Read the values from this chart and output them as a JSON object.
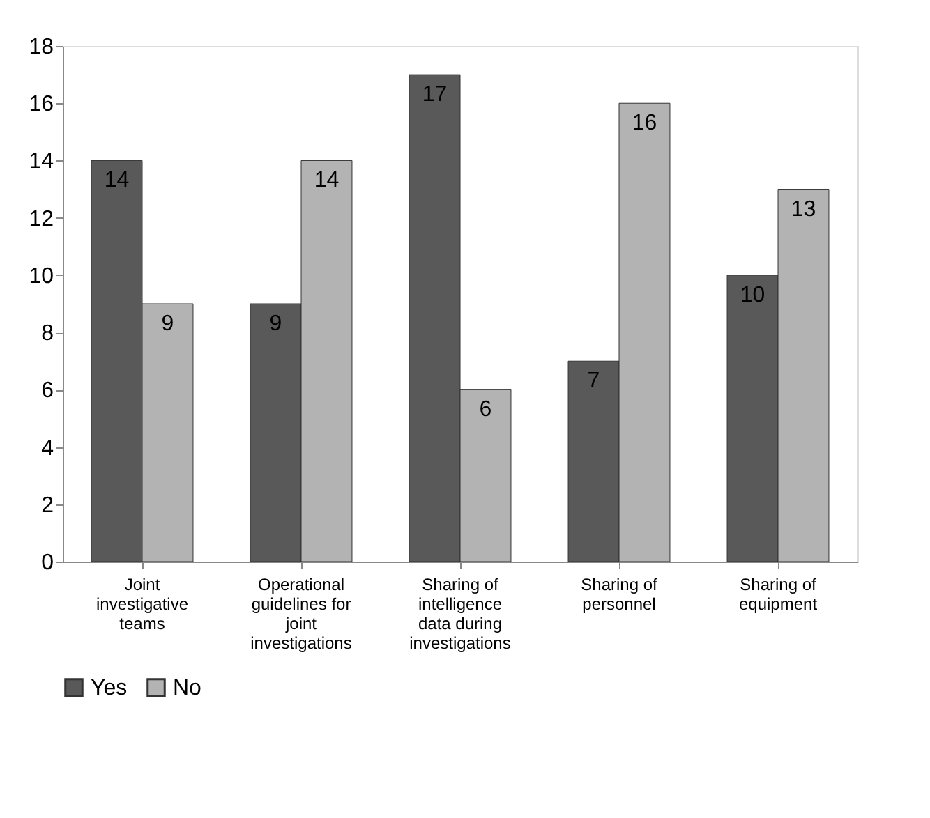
{
  "chart_data": {
    "type": "bar",
    "categories": [
      "Joint investigative teams",
      "Operational guidelines for joint investigations",
      "Sharing of intelligence data during investigations",
      "Sharing of personnel",
      "Sharing of equipment"
    ],
    "series": [
      {
        "name": "Yes",
        "color": "#595959",
        "values": [
          14,
          9,
          17,
          7,
          10
        ]
      },
      {
        "name": "No",
        "color": "#b3b3b3",
        "values": [
          9,
          14,
          6,
          16,
          13
        ]
      }
    ],
    "ylim": [
      0,
      18
    ],
    "yticks": [
      0,
      2,
      4,
      6,
      8,
      10,
      12,
      14,
      16,
      18
    ],
    "grid": false,
    "legend": "bottom",
    "data_labels": true
  }
}
